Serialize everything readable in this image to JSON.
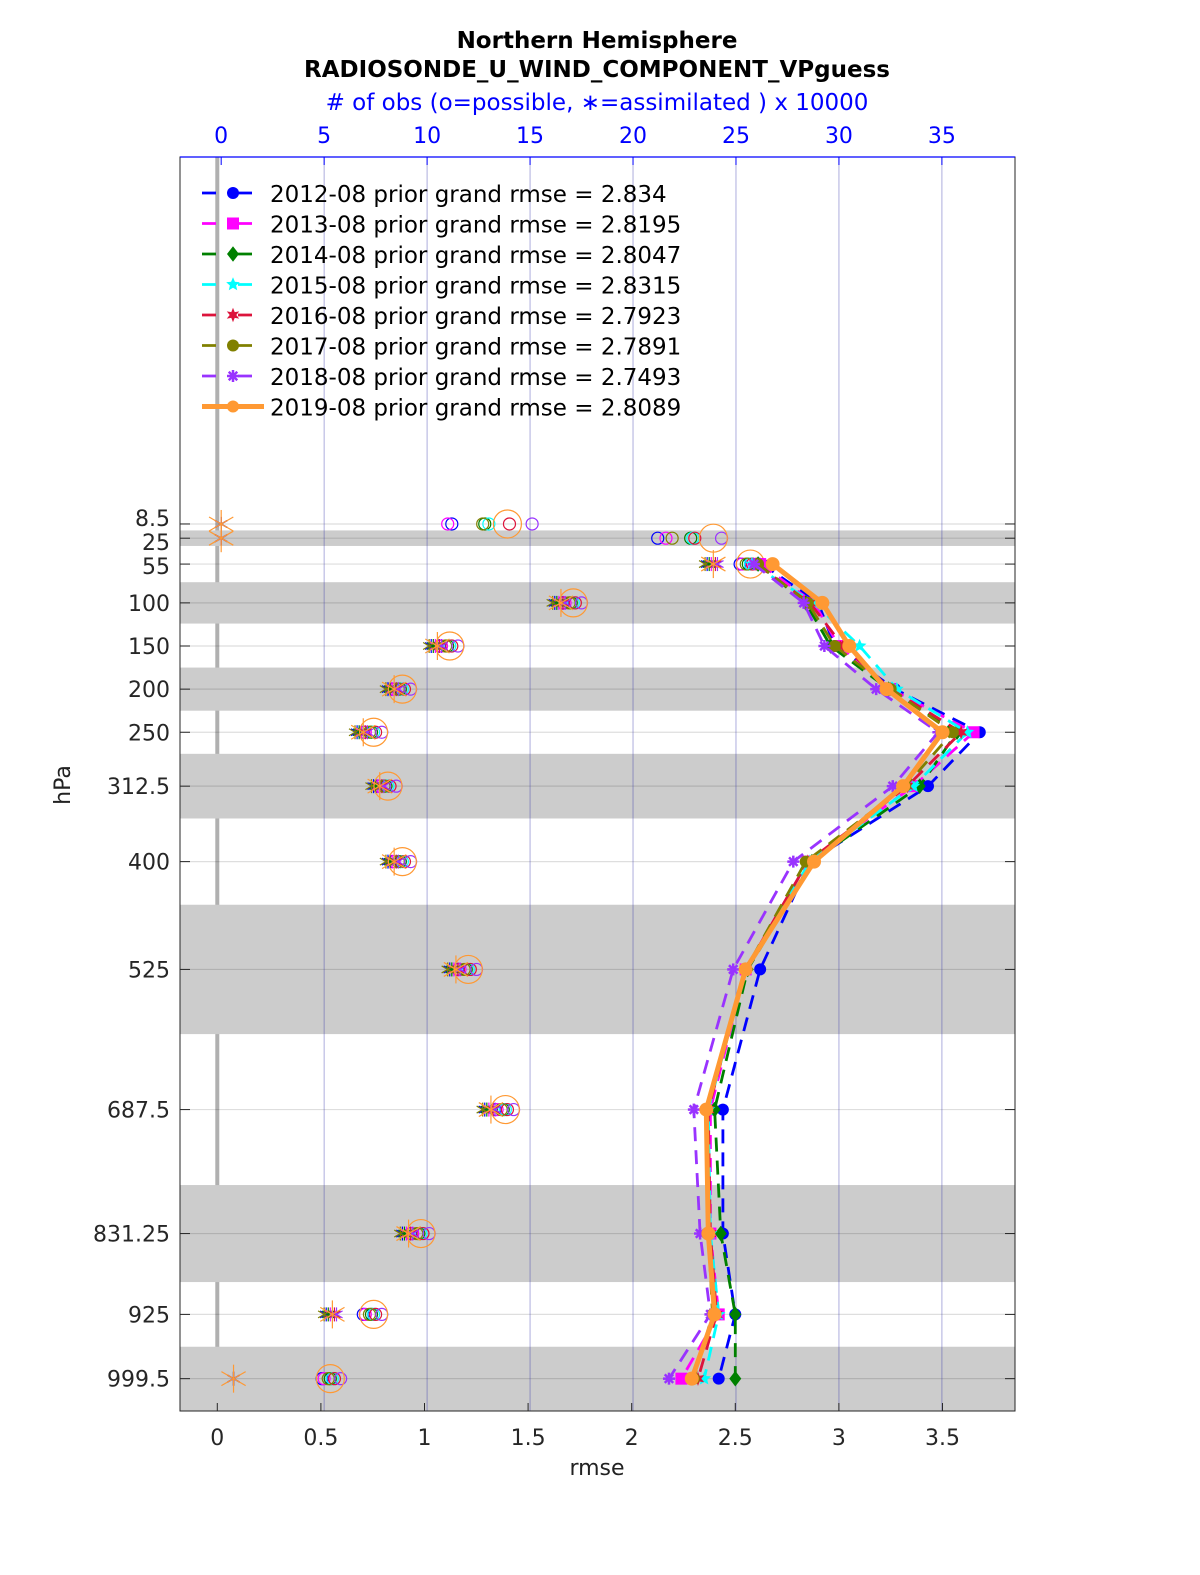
{
  "chart_data": {
    "type": "line",
    "title": "Northern Hemisphere",
    "subtitle": "RADIOSONDE_U_WIND_COMPONENT_VPguess",
    "top_axis_label": "# of obs (o=possible, ∗=assimilated ) x 10000",
    "xlabel": "rmse",
    "ylabel": "hPa",
    "xlim": [
      -0.18,
      3.85
    ],
    "top_xlim": [
      -2,
      38.55
    ],
    "ylim": [
      -417,
      1037
    ],
    "y_reversed": true,
    "x_ticks": [
      "0",
      "0.5",
      "1",
      "1.5",
      "2",
      "2.5",
      "3",
      "3.5"
    ],
    "x_tick_values": [
      0,
      0.5,
      1,
      1.5,
      2,
      2.5,
      3,
      3.5
    ],
    "top_ticks": [
      "0",
      "5",
      "10",
      "15",
      "20",
      "25",
      "30",
      "35"
    ],
    "top_tick_values": [
      0,
      5,
      10,
      15,
      20,
      25,
      30,
      35
    ],
    "y_ticks": [
      "8.5",
      "25",
      "55",
      "100",
      "150",
      "200",
      "250",
      "312.5",
      "400",
      "525",
      "687.5",
      "831.25",
      "925",
      "999.5"
    ],
    "obs_levels": [
      8.5,
      25,
      55,
      100,
      150,
      200,
      250,
      312.5,
      400,
      525,
      687.5,
      831.25,
      925,
      999.5
    ],
    "rmse_levels": [
      55,
      100,
      150,
      200,
      250,
      312.5,
      400,
      525,
      687.5,
      831.25,
      925,
      999.5
    ],
    "layer_bands_hPa": [
      [
        16,
        34
      ],
      [
        76,
        124
      ],
      [
        175,
        225
      ],
      [
        275,
        350
      ],
      [
        450,
        600
      ],
      [
        775,
        887.5
      ],
      [
        962.5,
        1037
      ]
    ],
    "grid": true,
    "legend_placement": "top-left",
    "colors": {
      "top_axis": "#0000ff",
      "band": "#cccccc",
      "grid_vertical": "#9999dd",
      "grid_horizontal": "#dddddd",
      "zero_line": "#b0b0b0"
    },
    "series": [
      {
        "name": "2012-08 prior grand rmse = 2.834",
        "color": "#0000ff",
        "marker": "circle",
        "style": "dashed",
        "rmse": [
          2.63,
          2.9,
          2.98,
          3.27,
          3.68,
          3.43,
          2.86,
          2.62,
          2.44,
          2.44,
          2.5,
          2.42
        ],
        "possible": [
          11.2,
          21.2,
          25.2,
          16.6,
          10.6,
          8.3,
          6.9,
          7.6,
          8.3,
          11.5,
          13.3,
          9.2,
          6.9,
          4.9
        ],
        "assimilated": [
          0,
          0,
          23.6,
          16.2,
          10.2,
          8.1,
          6.6,
          7.4,
          8.1,
          11.1,
          12.8,
          8.8,
          5.1,
          0.6
        ]
      },
      {
        "name": "2013-08 prior grand rmse = 2.8195",
        "color": "#ff00ff",
        "marker": "square",
        "style": "dashed",
        "rmse": [
          2.62,
          2.88,
          3.0,
          3.25,
          3.65,
          3.36,
          2.85,
          2.55,
          2.38,
          2.38,
          2.42,
          2.24
        ],
        "possible": [
          11.0,
          21.6,
          25.3,
          16.7,
          10.7,
          8.4,
          7.0,
          7.7,
          8.4,
          11.6,
          13.4,
          9.3,
          7.0,
          5.0
        ],
        "assimilated": [
          0,
          0,
          23.8,
          16.4,
          10.4,
          8.3,
          6.8,
          7.6,
          8.3,
          11.3,
          13.0,
          9.0,
          5.3,
          0.6
        ]
      },
      {
        "name": "2014-08 prior grand rmse = 2.8047",
        "color": "#008000",
        "marker": "diamond",
        "style": "dashed",
        "rmse": [
          2.61,
          2.84,
          2.96,
          3.24,
          3.57,
          3.39,
          2.87,
          2.56,
          2.4,
          2.43,
          2.5,
          2.5
        ],
        "possible": [
          12.8,
          22.8,
          25.6,
          17.0,
          11.0,
          8.7,
          7.3,
          8.0,
          8.7,
          11.9,
          13.7,
          9.6,
          7.3,
          5.3
        ],
        "assimilated": [
          0,
          0,
          23.7,
          16.3,
          10.3,
          8.2,
          6.7,
          7.5,
          8.2,
          11.2,
          12.9,
          8.9,
          5.2,
          0.6
        ]
      },
      {
        "name": "2015-08 prior grand rmse = 2.8315",
        "color": "#00ffff",
        "marker": "star",
        "style": "dashed",
        "rmse": [
          2.58,
          2.88,
          3.1,
          3.28,
          3.62,
          3.36,
          2.86,
          2.55,
          2.37,
          2.38,
          2.42,
          2.35
        ],
        "possible": [
          13.0,
          22.9,
          25.7,
          17.1,
          11.1,
          8.8,
          7.4,
          8.1,
          8.8,
          12.0,
          13.8,
          9.7,
          7.4,
          5.4
        ],
        "assimilated": [
          0,
          0,
          23.9,
          16.5,
          10.5,
          8.4,
          6.9,
          7.7,
          8.4,
          11.4,
          13.1,
          9.1,
          5.4,
          0.6
        ]
      },
      {
        "name": "2016-08 prior grand rmse = 2.7923",
        "color": "#dc143c",
        "marker": "hexagram",
        "style": "dashed",
        "rmse": [
          2.6,
          2.86,
          3.02,
          3.25,
          3.59,
          3.33,
          2.85,
          2.55,
          2.37,
          2.38,
          2.41,
          2.32
        ],
        "possible": [
          14.0,
          23.0,
          25.8,
          17.2,
          11.2,
          8.9,
          7.5,
          8.2,
          8.9,
          12.1,
          13.9,
          9.8,
          7.5,
          5.5
        ],
        "assimilated": [
          0,
          0,
          24.0,
          16.6,
          10.6,
          8.5,
          7.0,
          7.8,
          8.5,
          11.5,
          13.2,
          9.2,
          5.5,
          0.6
        ]
      },
      {
        "name": "2017-08 prior grand rmse = 2.7891",
        "color": "#808000",
        "marker": "octagon",
        "style": "dashed",
        "rmse": [
          2.61,
          2.85,
          2.98,
          3.25,
          3.55,
          3.32,
          2.84,
          2.55,
          2.36,
          2.37,
          2.39,
          2.3
        ],
        "possible": [
          12.7,
          21.9,
          25.5,
          16.9,
          10.9,
          8.6,
          7.2,
          7.9,
          8.6,
          11.8,
          13.6,
          9.5,
          7.2,
          5.2
        ],
        "assimilated": [
          0,
          0,
          23.5,
          16.1,
          10.1,
          8.0,
          6.5,
          7.3,
          8.0,
          11.0,
          12.7,
          8.7,
          5.0,
          0.6
        ]
      },
      {
        "name": "2018-08 prior grand rmse = 2.7493",
        "color": "#9933ff",
        "marker": "asterisk",
        "style": "dashed",
        "rmse": [
          2.59,
          2.83,
          2.93,
          3.18,
          3.48,
          3.26,
          2.78,
          2.49,
          2.3,
          2.33,
          2.38,
          2.18
        ],
        "possible": [
          15.1,
          24.3,
          26.1,
          17.5,
          11.5,
          9.2,
          7.8,
          8.5,
          9.2,
          12.4,
          14.2,
          10.1,
          7.8,
          5.8
        ],
        "assimilated": [
          0,
          0,
          24.1,
          16.7,
          10.7,
          8.6,
          7.1,
          7.9,
          8.6,
          11.6,
          13.3,
          9.3,
          5.6,
          0.6
        ]
      },
      {
        "name": "2019-08 prior grand rmse = 2.8089",
        "color": "#ff9933",
        "marker": "circle",
        "style": "solid",
        "rmse": [
          2.68,
          2.92,
          3.05,
          3.23,
          3.5,
          3.31,
          2.88,
          2.55,
          2.36,
          2.37,
          2.4,
          2.29
        ],
        "possible": [
          13.9,
          23.9,
          25.7,
          17.1,
          11.1,
          8.8,
          7.4,
          8.1,
          8.8,
          12.0,
          13.8,
          9.7,
          7.4,
          5.3
        ],
        "assimilated": [
          0,
          0,
          23.9,
          16.5,
          10.5,
          8.4,
          6.9,
          7.7,
          8.4,
          11.4,
          13.1,
          9.1,
          5.4,
          0.6
        ]
      }
    ]
  }
}
